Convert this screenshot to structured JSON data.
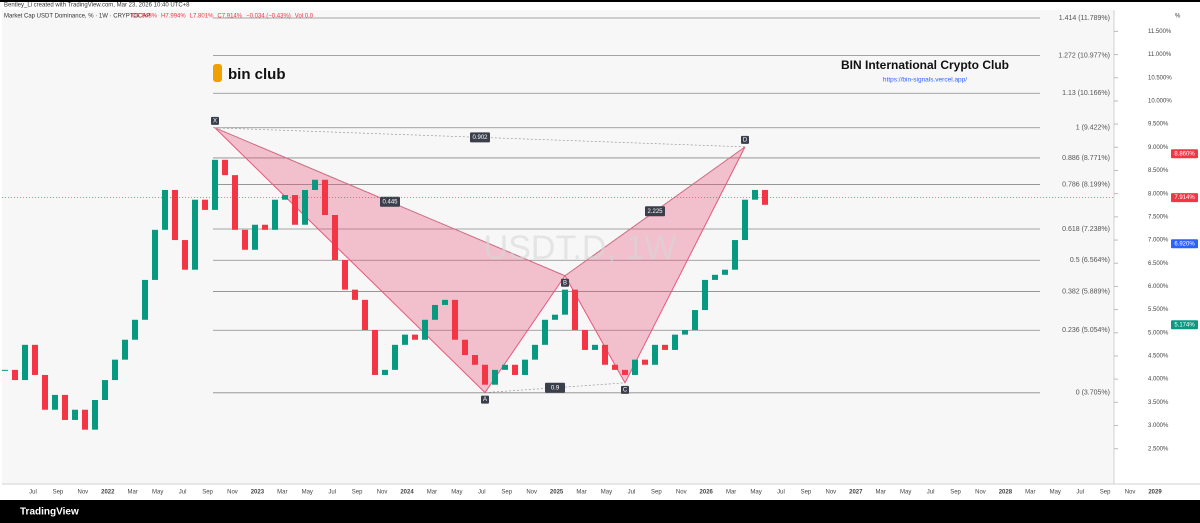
{
  "header": {
    "author": "Bentley_Li created with TradingView.com, Mar 23, 2026 10:40 UTC+8",
    "symbol": "Market Cap USDT Dominance, % · 1W · CRYPTOCAP",
    "ohlc": [
      "O7.948%",
      "H7.994%",
      "L7.801%",
      "C7.914%",
      "−0.034 (−0.43%)"
    ],
    "volume": "Vol 0.0"
  },
  "branding": {
    "logo_text": "bin club",
    "club_name": "BIN International Crypto Club",
    "url": "https://bin-signals.vercel.app/",
    "watermark": "USDT.D, 1W",
    "footer": "TradingView"
  },
  "chart_data": {
    "type": "candlestick",
    "axis_unit": "%",
    "ylim": [
      1.76,
      11.94
    ],
    "yticks": [
      {
        "value": 2.5,
        "label": "2.500%"
      },
      {
        "value": 3,
        "label": "3.000%"
      },
      {
        "value": 3.5,
        "label": "3.500%"
      },
      {
        "value": 4,
        "label": "4.000%"
      },
      {
        "value": 4.5,
        "label": "4.500%"
      },
      {
        "value": 5,
        "label": "5.000%"
      },
      {
        "value": 5.5,
        "label": "5.500%"
      },
      {
        "value": 6,
        "label": "6.000%"
      },
      {
        "value": 6.5,
        "label": "6.500%"
      },
      {
        "value": 7,
        "label": "7.000%"
      },
      {
        "value": 7.5,
        "label": "7.500%"
      },
      {
        "value": 8,
        "label": "8.000%"
      },
      {
        "value": 8.5,
        "label": "8.500%"
      },
      {
        "value": 9,
        "label": "9.000%"
      },
      {
        "value": 9.5,
        "label": "9.500%"
      },
      {
        "value": 10,
        "label": "10.000%"
      },
      {
        "value": 10.5,
        "label": "10.500%"
      },
      {
        "value": 11,
        "label": "11.000%"
      },
      {
        "value": 11.5,
        "label": "11.500%"
      }
    ],
    "x_labels": [
      "Jul",
      "Sep",
      "Nov",
      "2022",
      "Mar",
      "May",
      "Jul",
      "Sep",
      "Nov",
      "2023",
      "Mar",
      "May",
      "Jul",
      "Sep",
      "Nov",
      "2024",
      "Mar",
      "May",
      "Jul",
      "Sep",
      "Nov",
      "2025",
      "Mar",
      "May",
      "Jul",
      "Sep",
      "Nov",
      "2026",
      "Mar",
      "May",
      "Jul",
      "Sep",
      "Nov",
      "2027",
      "Mar",
      "May",
      "Jul",
      "Sep",
      "Nov",
      "2028",
      "Mar",
      "May",
      "Jul",
      "Sep",
      "Nov",
      "2029"
    ],
    "closes": [
      4.2,
      3.98,
      4.74,
      4.09,
      3.34,
      3.66,
      3.12,
      3.34,
      2.91,
      3.55,
      3.98,
      4.42,
      4.85,
      5.28,
      6.14,
      7.22,
      8.08,
      7.0,
      6.36,
      7.87,
      7.65,
      8.73,
      8.4,
      7.22,
      6.79,
      7.33,
      7.22,
      7.87,
      7.97,
      7.33,
      8.08,
      8.3,
      7.54,
      6.57,
      5.93,
      5.71,
      5.06,
      4.09,
      4.2,
      4.74,
      4.96,
      4.85,
      5.28,
      5.6,
      5.71,
      4.85,
      4.52,
      4.31,
      3.88,
      4.2,
      4.31,
      4.09,
      4.42,
      4.74,
      5.28,
      5.39,
      5.93,
      5.06,
      4.63,
      4.74,
      4.31,
      4.2,
      4.09,
      4.42,
      4.31,
      4.74,
      4.63,
      4.96,
      5.06,
      5.49,
      6.14,
      6.25,
      6.36,
      7.0,
      7.87,
      8.08,
      7.76
    ],
    "up_color": "#089981",
    "down_color": "#f23645",
    "fib_levels": [
      {
        "value": 11.789,
        "label": "1.414 (11.789%)"
      },
      {
        "value": 10.977,
        "label": "1.272 (10.977%)"
      },
      {
        "value": 10.166,
        "label": "1.13 (10.166%)"
      },
      {
        "value": 9.422,
        "label": "1 (9.422%)"
      },
      {
        "value": 8.771,
        "label": "0.886 (8.771%)"
      },
      {
        "value": 8.199,
        "label": "0.786 (8.199%)"
      },
      {
        "value": 7.238,
        "label": "0.618 (7.238%)"
      },
      {
        "value": 6.564,
        "label": "0.5 (6.564%)"
      },
      {
        "value": 5.889,
        "label": "0.382 (5.889%)"
      },
      {
        "value": 5.054,
        "label": "0.236 (5.054%)"
      },
      {
        "value": 3.705,
        "label": "0 (3.705%)"
      }
    ],
    "pattern": {
      "color": "#e8577a",
      "points": [
        {
          "label": "X",
          "value": 9.42
        },
        {
          "label": "A",
          "value": 3.71
        },
        {
          "label": "B",
          "value": 6.23
        },
        {
          "label": "C",
          "value": 3.92
        },
        {
          "label": "D",
          "value": 9.01
        }
      ],
      "ratios": [
        "0.902",
        "0.445",
        "2.225",
        "0.9"
      ]
    },
    "price_tags": [
      {
        "value": 8.86,
        "label": "8.860%",
        "color": "#f23645"
      },
      {
        "value": 7.914,
        "label": "7.914%",
        "color": "#f23645"
      },
      {
        "value": 6.92,
        "label": "6.920%",
        "color": "#2962ff"
      },
      {
        "value": 5.174,
        "label": "5.174%",
        "color": "#089981"
      }
    ]
  }
}
